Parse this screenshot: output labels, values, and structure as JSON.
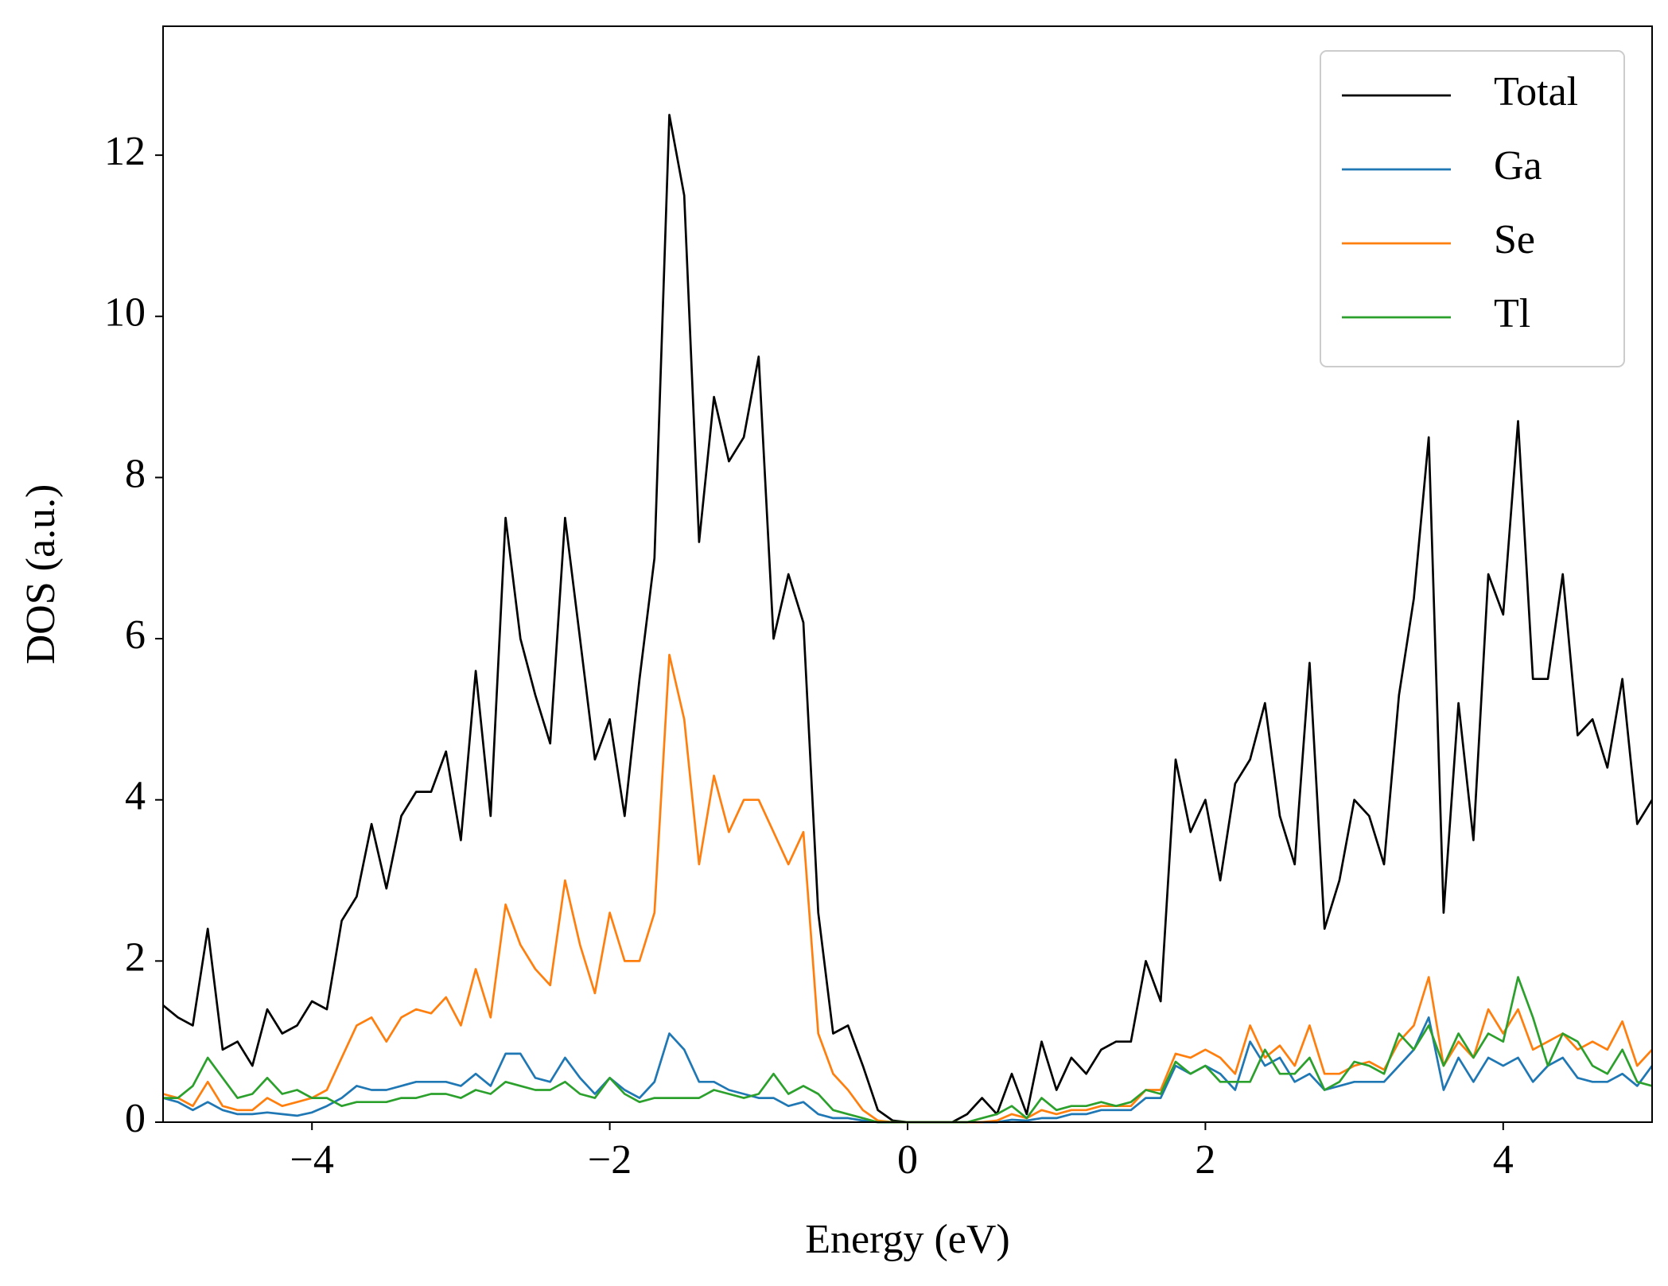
{
  "chart_data": {
    "type": "line",
    "xlabel": "Energy (eV)",
    "ylabel": "DOS (a.u.)",
    "x": [
      -5,
      -4.9,
      -4.8,
      -4.7,
      -4.6,
      -4.5,
      -4.4,
      -4.3,
      -4.2,
      -4.1,
      -4,
      -3.9,
      -3.8,
      -3.7,
      -3.6,
      -3.5,
      -3.4,
      -3.3,
      -3.2,
      -3.1,
      -3,
      -2.9,
      -2.8,
      -2.7,
      -2.6,
      -2.5,
      -2.4,
      -2.3,
      -2.2,
      -2.1,
      -2,
      -1.9,
      -1.8,
      -1.7,
      -1.6,
      -1.5,
      -1.4,
      -1.3,
      -1.2,
      -1.1,
      -1,
      -0.9,
      -0.8,
      -0.7,
      -0.6,
      -0.5,
      -0.4,
      -0.3,
      -0.2,
      -0.1,
      0,
      0.1,
      0.2,
      0.3,
      0.4,
      0.5,
      0.6,
      0.7,
      0.8,
      0.9,
      1,
      1.1,
      1.2,
      1.3,
      1.4,
      1.5,
      1.6,
      1.7,
      1.8,
      1.9,
      2,
      2.1,
      2.2,
      2.3,
      2.4,
      2.5,
      2.6,
      2.7,
      2.8,
      2.9,
      3,
      3.1,
      3.2,
      3.3,
      3.4,
      3.5,
      3.6,
      3.7,
      3.8,
      3.9,
      4,
      4.1,
      4.2,
      4.3,
      4.4,
      4.5,
      4.6,
      4.7,
      4.8,
      4.9,
      5
    ],
    "series": [
      {
        "name": "Total",
        "color": "#000000",
        "values": [
          1.45,
          1.3,
          1.2,
          2.4,
          0.9,
          1.0,
          0.7,
          1.4,
          1.1,
          1.2,
          1.5,
          1.4,
          2.5,
          2.8,
          3.7,
          2.9,
          3.8,
          4.1,
          4.1,
          4.6,
          3.5,
          5.6,
          3.8,
          7.5,
          6.0,
          5.3,
          4.7,
          7.5,
          6.0,
          4.5,
          5.0,
          3.8,
          5.5,
          7.0,
          12.5,
          11.5,
          7.2,
          9.0,
          8.2,
          8.5,
          9.5,
          6.0,
          6.8,
          6.2,
          2.6,
          1.1,
          1.2,
          0.7,
          0.15,
          0.02,
          0,
          0,
          0,
          0,
          0.1,
          0.3,
          0.1,
          0.6,
          0.1,
          1.0,
          0.4,
          0.8,
          0.6,
          0.9,
          1.0,
          1.0,
          2.0,
          1.5,
          4.5,
          3.6,
          4.0,
          3.0,
          4.2,
          4.5,
          5.2,
          3.8,
          3.2,
          5.7,
          2.4,
          3.0,
          4.0,
          3.8,
          3.2,
          5.3,
          6.5,
          8.5,
          2.6,
          5.2,
          3.5,
          6.8,
          6.3,
          8.7,
          5.5,
          5.5,
          6.8,
          4.8,
          5.0,
          4.4,
          5.5,
          3.7,
          4.0
        ]
      },
      {
        "name": "Ga",
        "color": "#1f77b4",
        "values": [
          0.3,
          0.25,
          0.15,
          0.25,
          0.15,
          0.1,
          0.1,
          0.12,
          0.1,
          0.08,
          0.12,
          0.2,
          0.3,
          0.45,
          0.4,
          0.4,
          0.45,
          0.5,
          0.5,
          0.5,
          0.45,
          0.6,
          0.45,
          0.85,
          0.85,
          0.55,
          0.5,
          0.8,
          0.55,
          0.35,
          0.55,
          0.4,
          0.3,
          0.5,
          1.1,
          0.9,
          0.5,
          0.5,
          0.4,
          0.35,
          0.3,
          0.3,
          0.2,
          0.25,
          0.1,
          0.05,
          0.05,
          0.02,
          0,
          0,
          0,
          0,
          0,
          0,
          0,
          0,
          0,
          0.03,
          0.02,
          0.05,
          0.05,
          0.1,
          0.1,
          0.15,
          0.15,
          0.15,
          0.3,
          0.3,
          0.7,
          0.6,
          0.7,
          0.6,
          0.4,
          1.0,
          0.7,
          0.8,
          0.5,
          0.6,
          0.4,
          0.45,
          0.5,
          0.5,
          0.5,
          0.7,
          0.9,
          1.3,
          0.4,
          0.8,
          0.5,
          0.8,
          0.7,
          0.8,
          0.5,
          0.7,
          0.8,
          0.55,
          0.5,
          0.5,
          0.6,
          0.45,
          0.7
        ]
      },
      {
        "name": "Se",
        "color": "#ff7f0e",
        "values": [
          0.35,
          0.3,
          0.2,
          0.5,
          0.2,
          0.15,
          0.15,
          0.3,
          0.2,
          0.25,
          0.3,
          0.4,
          0.8,
          1.2,
          1.3,
          1.0,
          1.3,
          1.4,
          1.35,
          1.55,
          1.2,
          1.9,
          1.3,
          2.7,
          2.2,
          1.9,
          1.7,
          3.0,
          2.2,
          1.6,
          2.6,
          2.0,
          2.0,
          2.6,
          5.8,
          5.0,
          3.2,
          4.3,
          3.6,
          4.0,
          4.0,
          3.6,
          3.2,
          3.6,
          1.1,
          0.6,
          0.4,
          0.15,
          0.02,
          0,
          0,
          0,
          0,
          0,
          0,
          0,
          0.02,
          0.1,
          0.05,
          0.15,
          0.1,
          0.15,
          0.15,
          0.2,
          0.2,
          0.2,
          0.4,
          0.4,
          0.85,
          0.8,
          0.9,
          0.8,
          0.6,
          1.2,
          0.8,
          0.95,
          0.7,
          1.2,
          0.6,
          0.6,
          0.7,
          0.75,
          0.65,
          1.0,
          1.2,
          1.8,
          0.7,
          1.0,
          0.8,
          1.4,
          1.1,
          1.4,
          0.9,
          1.0,
          1.1,
          0.9,
          1.0,
          0.9,
          1.25,
          0.7,
          0.9
        ]
      },
      {
        "name": "Tl",
        "color": "#2ca02c",
        "values": [
          0.3,
          0.3,
          0.45,
          0.8,
          0.55,
          0.3,
          0.35,
          0.55,
          0.35,
          0.4,
          0.3,
          0.3,
          0.2,
          0.25,
          0.25,
          0.25,
          0.3,
          0.3,
          0.35,
          0.35,
          0.3,
          0.4,
          0.35,
          0.5,
          0.45,
          0.4,
          0.4,
          0.5,
          0.35,
          0.3,
          0.55,
          0.35,
          0.25,
          0.3,
          0.3,
          0.3,
          0.3,
          0.4,
          0.35,
          0.3,
          0.35,
          0.6,
          0.35,
          0.45,
          0.35,
          0.15,
          0.1,
          0.05,
          0,
          0,
          0,
          0,
          0,
          0,
          0,
          0.05,
          0.1,
          0.2,
          0.05,
          0.3,
          0.15,
          0.2,
          0.2,
          0.25,
          0.2,
          0.25,
          0.4,
          0.35,
          0.75,
          0.6,
          0.7,
          0.5,
          0.5,
          0.5,
          0.9,
          0.6,
          0.6,
          0.8,
          0.4,
          0.5,
          0.75,
          0.7,
          0.6,
          1.1,
          0.9,
          1.2,
          0.7,
          1.1,
          0.8,
          1.1,
          1.0,
          1.8,
          1.3,
          0.7,
          1.1,
          1.0,
          0.7,
          0.6,
          0.9,
          0.5,
          0.45
        ]
      }
    ],
    "xlim": [
      -5,
      5
    ],
    "xticks": [
      {
        "value": -4,
        "label": "−4"
      },
      {
        "value": -2,
        "label": "−2"
      },
      0,
      2,
      4
    ],
    "ylim": [
      0,
      13.6
    ],
    "yticks": [
      0,
      2,
      4,
      6,
      8,
      10,
      12
    ],
    "legend": "upper right"
  }
}
